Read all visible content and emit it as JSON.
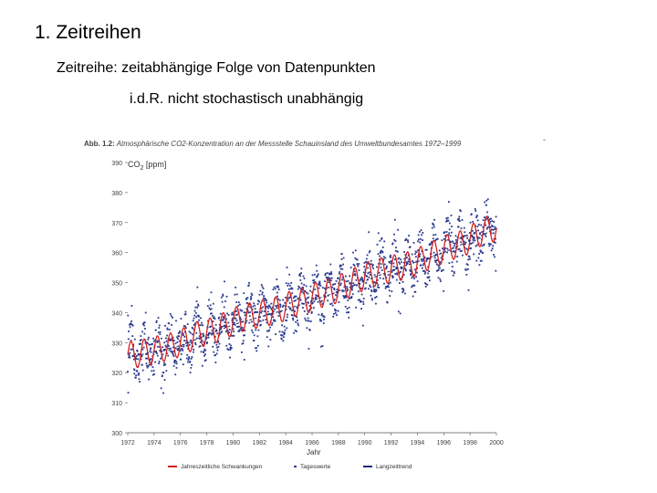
{
  "slide": {
    "title": "1. Zeitreihen",
    "subtitle": "Zeitreihe: zeitabhängige Folge von Datenpunkten",
    "note": "i.d.R. nicht stochastisch unabhängig"
  },
  "figure": {
    "caption_prefix": "Abb. 1.2:",
    "caption_text": "Atmosphärische CO2-Konzentration an der Messstelle Schauinsland des Umweltbundesamtes 1972–1999",
    "dash": "-",
    "ylabel": "CO",
    "ylabel_sub": "2",
    "ylabel_unit": "[ppm]",
    "xlabel": "Jahr",
    "colors": {
      "seasonal": "#d6211f",
      "daily": "#2a3a8f",
      "trend": "#1f2a6e",
      "axis": "#555555"
    }
  },
  "chart_data": {
    "type": "line",
    "xlabel": "Jahr",
    "ylabel": "CO2 [ppm]",
    "xlim": [
      1972,
      2000
    ],
    "ylim": [
      300,
      390
    ],
    "xticks": [
      "1972",
      "1974",
      "1976",
      "1978",
      "1980",
      "1982",
      "1984",
      "1986",
      "1988",
      "1990",
      "1992",
      "1994",
      "1996",
      "1998",
      "2000"
    ],
    "yticks": [
      "300",
      "310",
      "320",
      "330",
      "340",
      "350",
      "360",
      "370",
      "380",
      "390"
    ],
    "legend": [
      "Jahreszeitliche Schwankungen",
      "Tageswerte",
      "Langzeittrend"
    ],
    "series": [
      {
        "name": "Jahreszeitliche Schwankungen",
        "style": "line",
        "x": [
          1972.5,
          1973.5,
          1974.5,
          1975.5,
          1976.5,
          1977.5,
          1978.5,
          1979.5,
          1980.5,
          1981.5,
          1982.5,
          1983.5,
          1984.5,
          1985.5,
          1986.5,
          1987.5,
          1988.5,
          1989.5,
          1990.5,
          1991.5,
          1992.5,
          1993.5,
          1994.5,
          1995.5,
          1996.5,
          1997.5,
          1998.5,
          1999.5
        ],
        "values": [
          326,
          327,
          328,
          329,
          331,
          333,
          334,
          336,
          338,
          339,
          340,
          341,
          343,
          344,
          346,
          347,
          349,
          351,
          353,
          354,
          355,
          356,
          358,
          360,
          362,
          363,
          366,
          368
        ],
        "amplitude_ppm": 9
      },
      {
        "name": "Tageswerte",
        "style": "points",
        "spread_ppm": 14
      },
      {
        "name": "Langzeittrend",
        "style": "line",
        "x": [
          1972,
          1976,
          1980,
          1984,
          1988,
          1992,
          1996,
          2000
        ],
        "values": [
          325,
          329,
          336,
          341,
          347,
          354,
          360,
          368
        ]
      }
    ]
  }
}
